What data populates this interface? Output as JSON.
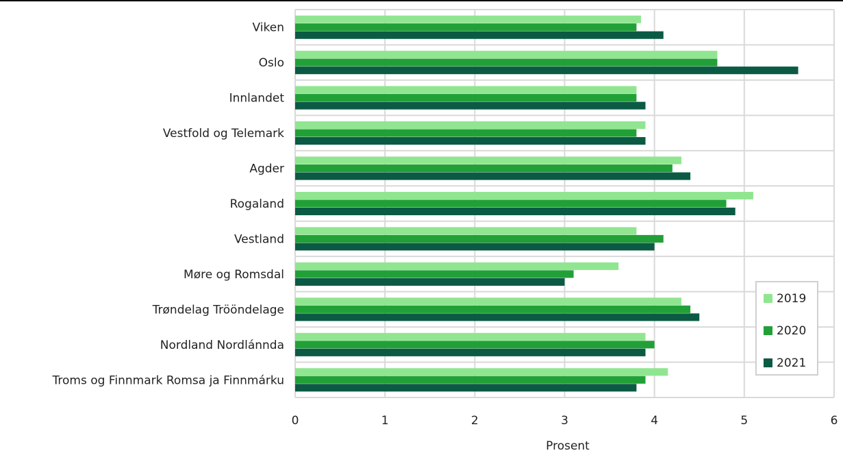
{
  "chart_data": {
    "type": "bar",
    "orientation": "horizontal",
    "title": "",
    "xlabel": "Prosent",
    "ylabel": "",
    "xlim": [
      0,
      6
    ],
    "xticks": [
      "0",
      "1",
      "2",
      "3",
      "4",
      "5",
      "6"
    ],
    "grid": true,
    "legend_position": "right",
    "categories": [
      "Viken",
      "Oslo",
      "Innlandet",
      "Vestfold og Telemark",
      "Agder",
      "Rogaland",
      "Vestland",
      "Møre og Romsdal",
      "Trøndelag Trööndelage",
      "Nordland Nordlánnda",
      "Troms og Finnmark Romsa ja Finnmárku"
    ],
    "series": [
      {
        "name": "2019",
        "color": "#90e690",
        "values": [
          3.85,
          4.7,
          3.8,
          3.9,
          4.3,
          5.1,
          3.8,
          3.6,
          4.3,
          3.9,
          4.15
        ]
      },
      {
        "name": "2020",
        "color": "#22a038",
        "values": [
          3.8,
          4.7,
          3.8,
          3.8,
          4.2,
          4.8,
          4.1,
          3.1,
          4.4,
          4.0,
          3.9
        ]
      },
      {
        "name": "2021",
        "color": "#0b5a44",
        "values": [
          4.1,
          5.6,
          3.9,
          3.9,
          4.4,
          4.9,
          4.0,
          3.0,
          4.5,
          3.9,
          3.8
        ]
      }
    ]
  }
}
